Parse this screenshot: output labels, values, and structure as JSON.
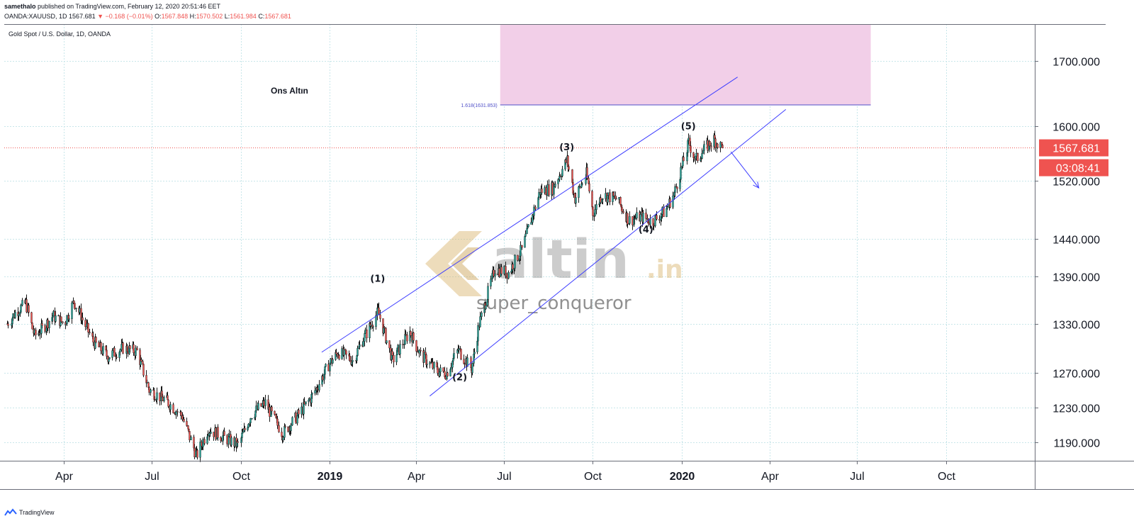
{
  "header": {
    "publisher": "samethalo",
    "published_text": "published on TradingView.com, February 12, 2020 20:51:46 EET",
    "symbol": "OANDA:XAUUSD, 1D",
    "last": "1567.681",
    "change": "▼ −0.168 (−0.01%)",
    "open_label": "O:",
    "open": "1567.848",
    "high_label": "H:",
    "high": "1570.502",
    "low_label": "L:",
    "low": "1561.984",
    "close_label": "C:",
    "close": "1567.681"
  },
  "footer": {
    "brand": "TradingView",
    "logo_icon": "tradingview-logo-icon"
  },
  "colors": {
    "up": "#26a69a",
    "down": "#ef5350",
    "body": "#1a1a1a",
    "channel": "#3d3dff",
    "target_zone": "#f2cfe8",
    "price_tag": "#ef5350"
  },
  "chart_data": {
    "type": "candlestick",
    "title": "Gold Spot / U.S. Dollar, 1D, OANDA",
    "annotation": "Ons Altın",
    "watermark": {
      "brand": "altin",
      "suffix": ".in",
      "user": "super_conqueror"
    },
    "x_ticks": [
      {
        "label": "Apr",
        "date": "2018-04-01"
      },
      {
        "label": "Jul",
        "date": "2018-07-01"
      },
      {
        "label": "Oct",
        "date": "2018-10-01"
      },
      {
        "label": "2019",
        "date": "2019-01-01",
        "bold": true
      },
      {
        "label": "Apr",
        "date": "2019-04-01"
      },
      {
        "label": "Jul",
        "date": "2019-07-01"
      },
      {
        "label": "Oct",
        "date": "2019-10-01"
      },
      {
        "label": "2020",
        "date": "2020-01-01",
        "bold": true
      },
      {
        "label": "Apr",
        "date": "2020-04-01"
      },
      {
        "label": "Jul",
        "date": "2020-07-01"
      },
      {
        "label": "Oct",
        "date": "2020-10-01"
      }
    ],
    "y_ticks": [
      "1190.000",
      "1230.000",
      "1270.000",
      "1330.000",
      "1390.000",
      "1440.000",
      "1520.000",
      "1600.000",
      "1700.000"
    ],
    "y_scale": "log",
    "y_range": [
      1170,
      1760
    ],
    "x_range": [
      "2018-01-29",
      "2021-01-01"
    ],
    "last_price": "1567.681",
    "countdown": "03:08:41",
    "price_path": [
      {
        "date": "2018-02-01",
        "price": 1330
      },
      {
        "date": "2018-02-10",
        "price": 1345
      },
      {
        "date": "2018-02-20",
        "price": 1356
      },
      {
        "date": "2018-03-01",
        "price": 1315
      },
      {
        "date": "2018-03-10",
        "price": 1325
      },
      {
        "date": "2018-03-20",
        "price": 1340
      },
      {
        "date": "2018-04-01",
        "price": 1330
      },
      {
        "date": "2018-04-11",
        "price": 1358
      },
      {
        "date": "2018-04-20",
        "price": 1335
      },
      {
        "date": "2018-05-01",
        "price": 1308
      },
      {
        "date": "2018-05-16",
        "price": 1290
      },
      {
        "date": "2018-06-01",
        "price": 1300
      },
      {
        "date": "2018-06-15",
        "price": 1296
      },
      {
        "date": "2018-06-28",
        "price": 1250
      },
      {
        "date": "2018-07-15",
        "price": 1238
      },
      {
        "date": "2018-08-01",
        "price": 1220
      },
      {
        "date": "2018-08-16",
        "price": 1175
      },
      {
        "date": "2018-08-28",
        "price": 1205
      },
      {
        "date": "2018-09-10",
        "price": 1198
      },
      {
        "date": "2018-09-28",
        "price": 1187
      },
      {
        "date": "2018-10-12",
        "price": 1222
      },
      {
        "date": "2018-10-26",
        "price": 1235
      },
      {
        "date": "2018-11-13",
        "price": 1200
      },
      {
        "date": "2018-11-30",
        "price": 1222
      },
      {
        "date": "2018-12-15",
        "price": 1245
      },
      {
        "date": "2019-01-01",
        "price": 1282
      },
      {
        "date": "2019-01-10",
        "price": 1295
      },
      {
        "date": "2019-01-25",
        "price": 1285
      },
      {
        "date": "2019-02-05",
        "price": 1312
      },
      {
        "date": "2019-02-20",
        "price": 1345
      },
      {
        "date": "2019-03-07",
        "price": 1285
      },
      {
        "date": "2019-03-25",
        "price": 1320
      },
      {
        "date": "2019-04-05",
        "price": 1292
      },
      {
        "date": "2019-04-23",
        "price": 1272
      },
      {
        "date": "2019-05-02",
        "price": 1270
      },
      {
        "date": "2019-05-14",
        "price": 1298
      },
      {
        "date": "2019-05-28",
        "price": 1275
      },
      {
        "date": "2019-06-05",
        "price": 1330
      },
      {
        "date": "2019-06-21",
        "price": 1400
      },
      {
        "date": "2019-07-05",
        "price": 1395
      },
      {
        "date": "2019-07-19",
        "price": 1425
      },
      {
        "date": "2019-08-07",
        "price": 1505
      },
      {
        "date": "2019-08-20",
        "price": 1510
      },
      {
        "date": "2019-09-04",
        "price": 1550
      },
      {
        "date": "2019-09-12",
        "price": 1495
      },
      {
        "date": "2019-09-24",
        "price": 1530
      },
      {
        "date": "2019-10-01",
        "price": 1475
      },
      {
        "date": "2019-10-10",
        "price": 1500
      },
      {
        "date": "2019-10-25",
        "price": 1495
      },
      {
        "date": "2019-11-07",
        "price": 1465
      },
      {
        "date": "2019-11-20",
        "price": 1470
      },
      {
        "date": "2019-12-01",
        "price": 1463
      },
      {
        "date": "2019-12-15",
        "price": 1478
      },
      {
        "date": "2019-12-24",
        "price": 1502
      },
      {
        "date": "2020-01-02",
        "price": 1545
      },
      {
        "date": "2020-01-08",
        "price": 1575
      },
      {
        "date": "2020-01-15",
        "price": 1550
      },
      {
        "date": "2020-01-24",
        "price": 1565
      },
      {
        "date": "2020-02-03",
        "price": 1580
      },
      {
        "date": "2020-02-12",
        "price": 1567.681
      }
    ],
    "channel": {
      "upper": [
        {
          "date": "2018-12-24",
          "price": 1295
        },
        {
          "date": "2020-02-28",
          "price": 1675
        }
      ],
      "lower": [
        {
          "date": "2019-04-15",
          "price": 1243
        },
        {
          "date": "2020-04-18",
          "price": 1625
        }
      ]
    },
    "forecast_arrow": [
      {
        "date": "2020-02-21",
        "price": 1562
      },
      {
        "date": "2020-03-21",
        "price": 1510
      }
    ],
    "fib_level": {
      "label": "1.618(1631.853)",
      "price": 1631.853,
      "from": "2019-06-27",
      "to": "2020-07-15"
    },
    "target_zone": {
      "from": "2019-06-27",
      "to": "2020-07-15",
      "low": 1631.853,
      "high": 1760
    },
    "waves": [
      {
        "label": "(1)",
        "date": "2019-02-20",
        "price": 1383,
        "pos": "above"
      },
      {
        "label": "(2)",
        "date": "2019-05-16",
        "price": 1268,
        "pos": "below"
      },
      {
        "label": "(3)",
        "date": "2019-09-04",
        "price": 1564,
        "pos": "above"
      },
      {
        "label": "(4)",
        "date": "2019-11-25",
        "price": 1456,
        "pos": "below"
      },
      {
        "label": "(5)",
        "date": "2020-01-08",
        "price": 1595,
        "pos": "above"
      }
    ]
  }
}
